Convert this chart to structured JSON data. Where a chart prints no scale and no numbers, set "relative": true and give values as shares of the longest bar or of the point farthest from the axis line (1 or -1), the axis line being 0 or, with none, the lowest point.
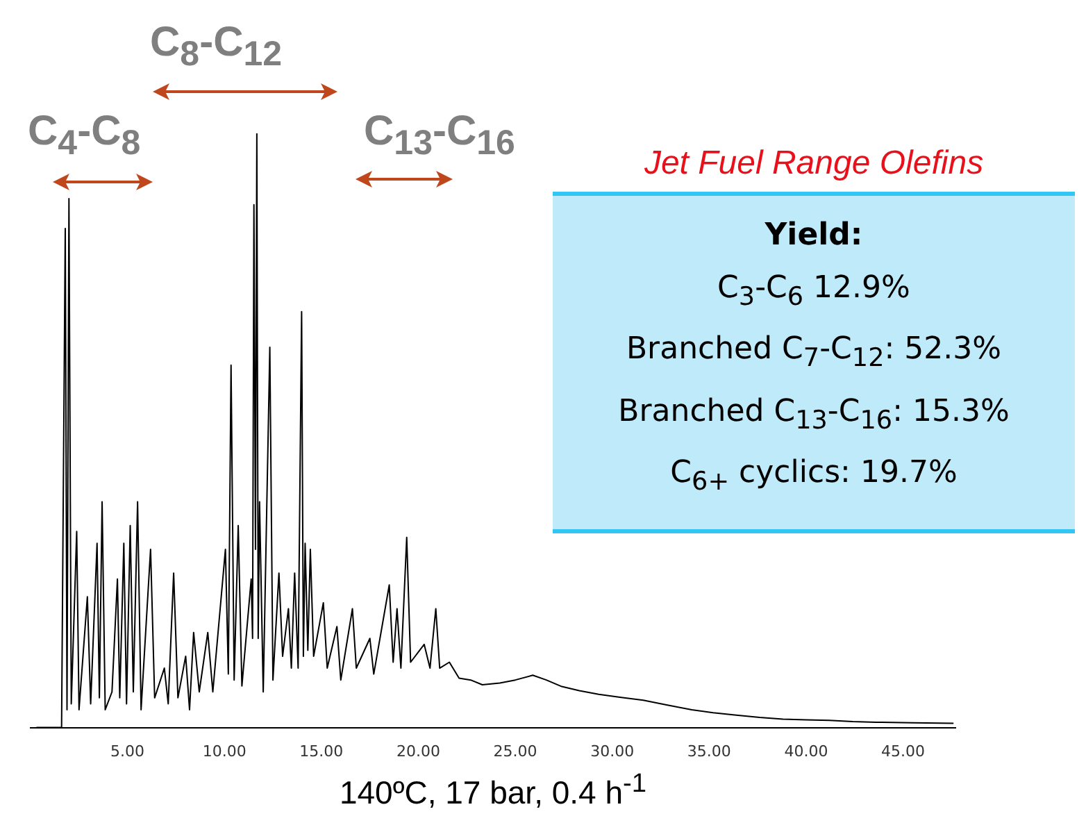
{
  "chart_data": {
    "type": "line",
    "relative": true,
    "marker": "none",
    "grid": false,
    "xlabel": "140ºC, 17 bar, 0.4 h$^{-1}$",
    "xlim": [
      0,
      47.7
    ],
    "xticks": [
      {
        "value": 5,
        "label": "5.00"
      },
      {
        "value": 10,
        "label": "10.00"
      },
      {
        "value": 15,
        "label": "15.00"
      },
      {
        "value": 20,
        "label": "20.00"
      },
      {
        "value": 25,
        "label": "25.00"
      },
      {
        "value": 30,
        "label": "30.00"
      },
      {
        "value": 35,
        "label": "35.00"
      },
      {
        "value": 40,
        "label": "40.00"
      },
      {
        "value": 45,
        "label": "45.00"
      }
    ],
    "annotations": [
      "C$_{4}$-C$_{8}$",
      "C$_{8}$-C$_{12}$",
      "C$_{13}$-C$_{16}$",
      "Jet Fuel Range Olefins",
      "Yield:",
      "C$_{3}$-C$_{6}$  12.9%",
      "Branched C$_{7}$-C$_{12}$: 52.3%",
      "Branched C$_{13}$-C$_{16}$: 15.3%",
      "C$_{6+}$ cyclics: 19.7%"
    ],
    "series": [
      {
        "color": "#000000",
        "x": [
          0.3,
          1.6,
          1.79,
          1.88,
          1.98,
          2.1,
          2.38,
          2.5,
          2.93,
          3.1,
          3.43,
          3.55,
          3.69,
          3.85,
          4.2,
          4.48,
          4.6,
          4.81,
          4.95,
          5.14,
          5.3,
          5.52,
          5.7,
          6.19,
          6.4,
          6.9,
          7.1,
          7.38,
          7.6,
          8.0,
          8.2,
          8.41,
          8.7,
          9.14,
          9.4,
          10.05,
          10.2,
          10.34,
          10.5,
          10.71,
          10.9,
          11.38,
          11.45,
          11.52,
          11.6,
          11.67,
          11.74,
          11.81,
          12.0,
          12.34,
          12.5,
          12.81,
          13.0,
          13.3,
          13.45,
          13.62,
          13.8,
          13.98,
          14.07,
          14.16,
          14.3,
          14.43,
          14.6,
          15.1,
          15.3,
          15.8,
          16.0,
          16.6,
          16.8,
          17.5,
          17.7,
          18.5,
          18.7,
          18.9,
          19.1,
          19.4,
          19.6,
          20.3,
          20.6,
          20.9,
          21.1,
          21.6,
          22.1,
          22.7,
          23.3,
          24.2,
          25.0,
          25.9,
          26.6,
          27.4,
          28.3,
          29.3,
          30.4,
          31.6,
          32.8,
          34.1,
          35.2,
          36.4,
          37.6,
          38.8,
          40.0,
          41.2,
          42.4,
          43.6,
          45.5,
          47.6
        ],
        "values": [
          0,
          0,
          0.84,
          0.03,
          0.89,
          0.04,
          0.33,
          0.03,
          0.22,
          0.04,
          0.31,
          0.05,
          0.38,
          0.03,
          0.06,
          0.25,
          0.05,
          0.31,
          0.04,
          0.34,
          0.06,
          0.38,
          0.03,
          0.3,
          0.05,
          0.1,
          0.04,
          0.26,
          0.05,
          0.12,
          0.03,
          0.16,
          0.06,
          0.16,
          0.06,
          0.3,
          0.09,
          0.61,
          0.08,
          0.34,
          0.07,
          0.25,
          0.15,
          0.88,
          0.3,
          1,
          0.15,
          0.38,
          0.06,
          0.64,
          0.08,
          0.26,
          0.12,
          0.2,
          0.1,
          0.26,
          0.1,
          0.7,
          0.12,
          0.31,
          0.13,
          0.3,
          0.12,
          0.21,
          0.1,
          0.17,
          0.08,
          0.2,
          0.1,
          0.15,
          0.09,
          0.24,
          0.11,
          0.2,
          0.1,
          0.32,
          0.11,
          0.14,
          0.1,
          0.2,
          0.1,
          0.11,
          0.083,
          0.08,
          0.072,
          0.075,
          0.08,
          0.088,
          0.08,
          0.069,
          0.062,
          0.056,
          0.051,
          0.046,
          0.038,
          0.03,
          0.025,
          0.021,
          0.017,
          0.014,
          0.013,
          0.012,
          0.01,
          0.009,
          0.008,
          0.007
        ]
      }
    ]
  }
}
